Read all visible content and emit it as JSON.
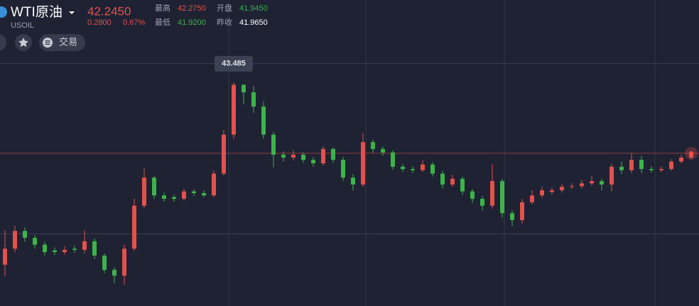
{
  "header": {
    "title": "WTI原油",
    "symbol": "USOIL",
    "price": "42.2450",
    "change": "0.2800",
    "change_pct": "0.67%",
    "stats": [
      {
        "label": "最高",
        "value": "42.2750"
      },
      {
        "label": "开盘",
        "value": "41.9450"
      },
      {
        "label": "最低",
        "value": "41.9200"
      },
      {
        "label": "昨收",
        "value": "41.9650"
      }
    ],
    "trade_button": "交易"
  },
  "chart_data": {
    "type": "candlestick",
    "up_color": "#e2514c",
    "down_color": "#3cb44a",
    "ylim": [
      39.58,
      44.92
    ],
    "grid_lines": [
      40.84,
      43.81
    ],
    "open": [
      40.3,
      40.58,
      40.89,
      40.77,
      40.65,
      40.55,
      40.52,
      40.58,
      40.56,
      40.71,
      40.46,
      40.21,
      40.11,
      40.58,
      41.33,
      41.82,
      41.51,
      41.48,
      41.45,
      41.58,
      41.55,
      41.51,
      41.89,
      42.57,
      43.44,
      43.31,
      43.06,
      42.57,
      42.22,
      42.17,
      42.22,
      42.13,
      42.07,
      42.32,
      42.13,
      41.82,
      41.7,
      42.44,
      42.32,
      42.26,
      42.01,
      41.97,
      41.95,
      42.05,
      41.89,
      41.7,
      41.8,
      41.58,
      41.45,
      41.33,
      41.76,
      41.2,
      41.08,
      41.39,
      41.51,
      41.57,
      41.6,
      41.66,
      41.67,
      41.72,
      41.76,
      41.7,
      42.01,
      41.95,
      42.13,
      41.97,
      41.95,
      41.97,
      42.1,
      42.17
    ],
    "high": [
      40.9,
      40.98,
      40.95,
      40.82,
      40.7,
      40.6,
      40.62,
      40.63,
      40.9,
      40.76,
      40.5,
      40.25,
      40.65,
      41.45,
      41.98,
      41.85,
      41.56,
      41.52,
      41.63,
      41.62,
      41.6,
      41.95,
      42.65,
      43.485,
      43.45,
      43.42,
      43.15,
      42.62,
      42.28,
      42.3,
      42.26,
      42.18,
      42.37,
      42.35,
      42.18,
      41.88,
      42.6,
      42.48,
      42.36,
      42.3,
      42.06,
      42.02,
      42.12,
      42.09,
      41.94,
      41.87,
      41.84,
      41.62,
      41.5,
      42.05,
      41.8,
      41.25,
      41.45,
      41.6,
      41.66,
      41.65,
      41.71,
      41.72,
      41.78,
      41.85,
      41.8,
      42.06,
      42.1,
      42.25,
      42.2,
      42.02,
      42.02,
      42.14,
      42.22,
      42.28
    ],
    "low": [
      40.1,
      40.52,
      40.7,
      40.58,
      40.46,
      40.47,
      40.48,
      40.51,
      40.5,
      40.4,
      40.15,
      39.98,
      39.95,
      40.55,
      41.28,
      41.45,
      41.4,
      41.4,
      41.42,
      41.5,
      41.48,
      41.48,
      41.85,
      42.5,
      43.1,
      42.95,
      42.5,
      42.0,
      42.1,
      42.12,
      42.08,
      42.01,
      42.03,
      42.08,
      41.76,
      41.6,
      41.66,
      42.25,
      42.2,
      41.96,
      41.92,
      41.9,
      41.92,
      41.84,
      41.63,
      41.66,
      41.52,
      41.38,
      41.25,
      41.28,
      41.12,
      40.98,
      41.02,
      41.35,
      41.47,
      41.53,
      41.56,
      41.62,
      41.63,
      41.68,
      41.6,
      41.58,
      41.88,
      41.9,
      41.9,
      41.91,
      41.92,
      41.94,
      42.07,
      42.14
    ],
    "close": [
      40.58,
      40.89,
      40.77,
      40.65,
      40.52,
      40.52,
      40.56,
      40.56,
      40.71,
      40.46,
      40.21,
      40.11,
      40.58,
      41.33,
      41.82,
      41.51,
      41.45,
      41.45,
      41.58,
      41.55,
      41.51,
      41.89,
      42.57,
      43.44,
      43.31,
      43.06,
      42.57,
      42.22,
      42.17,
      42.22,
      42.13,
      42.07,
      42.32,
      42.13,
      41.82,
      41.7,
      42.44,
      42.32,
      42.26,
      42.01,
      41.97,
      41.95,
      42.05,
      41.89,
      41.7,
      41.8,
      41.58,
      41.45,
      41.33,
      41.76,
      41.2,
      41.08,
      41.39,
      41.51,
      41.6,
      41.6,
      41.66,
      41.67,
      41.72,
      41.76,
      41.7,
      42.01,
      41.95,
      42.13,
      41.97,
      41.95,
      41.97,
      42.1,
      42.17,
      42.245
    ]
  }
}
